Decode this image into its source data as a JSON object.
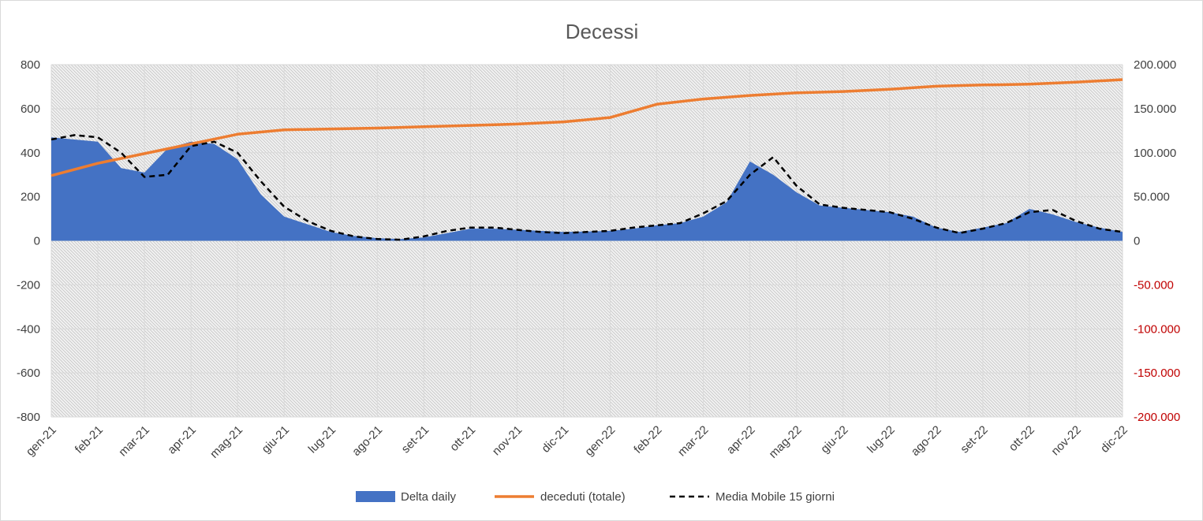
{
  "chart_data": {
    "type": "area",
    "title": "Decessi",
    "x_labels": [
      "gen-21",
      "feb-21",
      "mar-21",
      "apr-21",
      "mag-21",
      "giu-21",
      "lug-21",
      "ago-21",
      "set-21",
      "ott-21",
      "nov-21",
      "dic-21",
      "gen-22",
      "feb-22",
      "mar-22",
      "apr-22",
      "mag-22",
      "giu-22",
      "lug-22",
      "ago-22",
      "set-22",
      "ott-22",
      "nov-22",
      "dic-22"
    ],
    "y_left": {
      "ylim": [
        -800,
        800
      ],
      "ticks": [
        800,
        600,
        400,
        200,
        0,
        -200,
        -400,
        -600,
        -800
      ],
      "tick_labels": [
        "800",
        "600",
        "400",
        "200",
        "0",
        "-200",
        "-400",
        "-600",
        "-800"
      ]
    },
    "y_right": {
      "ylim": [
        -200000,
        200000
      ],
      "ticks": [
        200000,
        150000,
        100000,
        50000,
        0,
        -50000,
        -100000,
        -150000,
        -200000
      ],
      "tick_labels": [
        "200.000",
        "150.000",
        "100.000",
        "50.000",
        "0",
        "-50.000",
        "-100.000",
        "-150.000",
        "-200.000"
      ],
      "positive_color": "#404040",
      "negative_color": "#c00000"
    },
    "grid": true,
    "legend_position": "bottom",
    "series": [
      {
        "name": "Delta daily",
        "kind": "area",
        "axis": "left",
        "color": "#4472c4",
        "x": [
          0,
          0.5,
          1,
          1.5,
          2,
          2.5,
          3,
          3.5,
          4,
          4.5,
          5,
          5.5,
          6,
          6.5,
          7,
          7.5,
          8,
          8.5,
          9,
          9.5,
          10,
          10.5,
          11,
          11.5,
          12,
          12.5,
          13,
          13.5,
          14,
          14.5,
          15,
          15.5,
          16,
          16.5,
          17,
          17.5,
          18,
          18.5,
          19,
          19.5,
          20,
          20.5,
          21,
          21.5,
          22,
          22.5,
          23
        ],
        "values": [
          470,
          460,
          450,
          330,
          310,
          420,
          450,
          440,
          370,
          210,
          110,
          75,
          40,
          22,
          12,
          8,
          15,
          35,
          55,
          55,
          50,
          45,
          40,
          42,
          45,
          55,
          70,
          80,
          110,
          175,
          360,
          300,
          220,
          160,
          150,
          140,
          130,
          110,
          60,
          40,
          60,
          80,
          145,
          120,
          85,
          60,
          40
        ]
      },
      {
        "name": "deceduti (totale)",
        "kind": "line",
        "axis": "right",
        "color": "#ed7d31",
        "x": [
          0,
          1,
          2,
          3,
          4,
          5,
          6,
          7,
          8,
          9,
          10,
          11,
          12,
          13,
          14,
          15,
          16,
          17,
          18,
          19,
          20,
          20.5,
          21,
          22,
          23
        ],
        "values": [
          74000,
          88000,
          99000,
          110000,
          121000,
          126000,
          127000,
          128000,
          129500,
          131000,
          132500,
          135000,
          140000,
          155000,
          161000,
          165000,
          168000,
          169500,
          172000,
          175500,
          177000,
          177300,
          177800,
          180000,
          183000
        ]
      },
      {
        "name": "Media Mobile 15 giorni",
        "kind": "dashed-line",
        "axis": "left",
        "color": "#000000",
        "x": [
          0,
          0.5,
          1,
          1.5,
          2,
          2.5,
          3,
          3.5,
          4,
          4.5,
          5,
          5.5,
          6,
          6.5,
          7,
          7.5,
          8,
          8.5,
          9,
          9.5,
          10,
          10.5,
          11,
          11.5,
          12,
          12.5,
          13,
          13.5,
          14,
          14.5,
          15,
          15.5,
          16,
          16.5,
          17,
          17.5,
          18,
          18.5,
          19,
          19.5,
          20,
          20.5,
          21,
          21.5,
          22,
          22.5,
          23
        ],
        "values": [
          460,
          480,
          470,
          400,
          290,
          300,
          430,
          450,
          400,
          270,
          155,
          90,
          45,
          20,
          8,
          5,
          20,
          45,
          60,
          60,
          50,
          40,
          35,
          40,
          45,
          60,
          70,
          80,
          125,
          180,
          300,
          380,
          250,
          165,
          150,
          140,
          130,
          100,
          60,
          35,
          55,
          80,
          130,
          140,
          90,
          55,
          40
        ]
      }
    ]
  }
}
